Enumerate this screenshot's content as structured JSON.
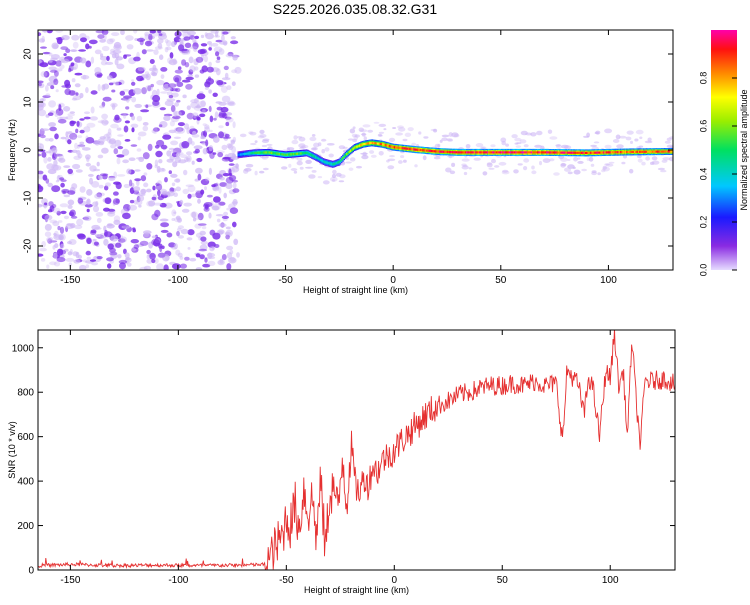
{
  "figure_title": "S225.2026.035.08.32.G31",
  "colors": {
    "snr_line": "#e53030",
    "cloud_light": "#cdb6f5",
    "cloud_dark": "#7a2ee8",
    "axis": "#000000"
  },
  "chart_data": [
    {
      "type": "heatmap",
      "title": "",
      "xlabel": "Height of straight line (km)",
      "ylabel": "Frequency (Hz)",
      "xlim": [
        -165,
        130
      ],
      "ylim": [
        -25,
        25
      ],
      "x_ticks": [
        -150,
        -100,
        -50,
        0,
        50,
        100
      ],
      "y_ticks": [
        -20,
        -10,
        0,
        10,
        20
      ],
      "colorbar": {
        "label": "Normalized spectral amplitude",
        "range": [
          0,
          1
        ],
        "ticks": [
          "0.0",
          "0.2",
          "0.4",
          "0.6",
          "0.8"
        ],
        "tick_values": [
          0,
          0.2,
          0.4,
          0.6,
          0.8
        ]
      },
      "noise_region_x": [
        -165,
        -72
      ],
      "trace": {
        "x": [
          -72,
          -65,
          -58,
          -50,
          -45,
          -40,
          -36,
          -32,
          -28,
          -25,
          -22,
          -18,
          -14,
          -10,
          -5,
          0,
          10,
          20,
          30,
          50,
          70,
          90,
          110,
          130
        ],
        "freq": [
          -1,
          -0.6,
          -0.5,
          -1,
          -0.8,
          -0.6,
          -1.5,
          -2.5,
          -3,
          -2.5,
          -1,
          0.5,
          1.2,
          1.5,
          1.2,
          0.6,
          0.1,
          -0.3,
          -0.5,
          -0.5,
          -0.5,
          -0.6,
          -0.4,
          -0.3
        ],
        "peak_amplitude": [
          0.3,
          0.5,
          0.6,
          0.55,
          0.6,
          0.5,
          0.45,
          0.4,
          0.45,
          0.5,
          0.6,
          0.7,
          0.8,
          0.8,
          0.85,
          0.9,
          0.95,
          0.95,
          0.95,
          0.98,
          0.98,
          0.95,
          0.9,
          0.9
        ]
      }
    },
    {
      "type": "line",
      "title": "",
      "xlabel": "Height of straight line (km)",
      "ylabel": "SNR (10 * v/v)",
      "xlim": [
        -165,
        130
      ],
      "ylim": [
        0,
        1080
      ],
      "x_ticks": [
        -150,
        -100,
        -50,
        0,
        50,
        100
      ],
      "y_ticks": [
        0,
        200,
        400,
        600,
        800,
        1000
      ],
      "series": [
        {
          "name": "SNR",
          "x": [
            -165,
            -150,
            -130,
            -110,
            -90,
            -70,
            -60,
            -57,
            -55,
            -52,
            -50,
            -48,
            -46,
            -44,
            -42,
            -40,
            -38,
            -36,
            -34,
            -32,
            -30,
            -28,
            -26,
            -24,
            -22,
            -20,
            -18,
            -16,
            -14,
            -12,
            -10,
            -8,
            -5,
            -2,
            0,
            5,
            10,
            15,
            20,
            25,
            30,
            35,
            40,
            45,
            50,
            55,
            60,
            65,
            70,
            75,
            78,
            80,
            85,
            88,
            90,
            92,
            95,
            98,
            100,
            102,
            104,
            106,
            108,
            110,
            112,
            114,
            116,
            120,
            125,
            130
          ],
          "y": [
            20,
            25,
            20,
            22,
            20,
            22,
            25,
            60,
            100,
            150,
            240,
            200,
            300,
            180,
            370,
            250,
            330,
            150,
            400,
            90,
            330,
            380,
            250,
            520,
            300,
            580,
            380,
            350,
            420,
            380,
            470,
            440,
            500,
            520,
            540,
            600,
            650,
            700,
            740,
            760,
            790,
            800,
            820,
            830,
            830,
            840,
            830,
            850,
            830,
            840,
            580,
            900,
            840,
            700,
            870,
            820,
            600,
            900,
            860,
            1070,
            820,
            900,
            590,
            1050,
            760,
            560,
            850,
            850,
            860,
            840
          ]
        }
      ]
    }
  ]
}
